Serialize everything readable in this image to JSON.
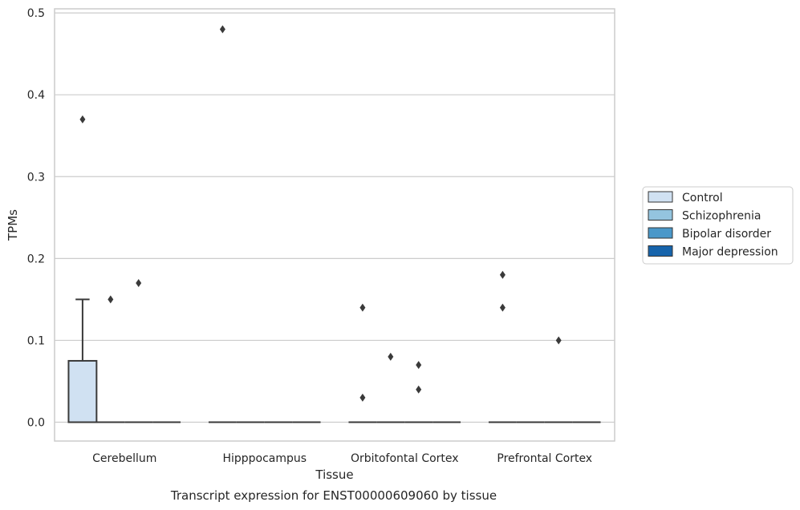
{
  "chart_data": {
    "type": "box",
    "caption": "Transcript expression for ENST00000609060 by tissue",
    "xlabel": "Tissue",
    "ylabel": "TPMs",
    "ylim": [
      -0.023,
      0.505
    ],
    "yticks": [
      0.0,
      0.1,
      0.2,
      0.3,
      0.4,
      0.5
    ],
    "ytick_labels": [
      "0.0",
      "0.1",
      "0.2",
      "0.3",
      "0.4",
      "0.5"
    ],
    "grid": "horizontal",
    "legend_position": "right",
    "categories": [
      "Cerebellum",
      "Hipppocampus",
      "Orbitofontal Cortex",
      "Prefrontal Cortex"
    ],
    "series": [
      {
        "name": "Control",
        "color": "#d0e1f2",
        "boxes": [
          {
            "q1": 0.0,
            "median": 0.0,
            "q3": 0.075,
            "whisker_low": 0.0,
            "whisker_high": 0.15,
            "outliers": [
              0.37
            ]
          },
          {
            "q1": 0.0,
            "median": 0.0,
            "q3": 0.0,
            "whisker_low": 0.0,
            "whisker_high": 0.0,
            "outliers": [
              0.48
            ]
          },
          {
            "q1": 0.0,
            "median": 0.0,
            "q3": 0.0,
            "whisker_low": 0.0,
            "whisker_high": 0.0,
            "outliers": [
              0.14,
              0.03
            ]
          },
          {
            "q1": 0.0,
            "median": 0.0,
            "q3": 0.0,
            "whisker_low": 0.0,
            "whisker_high": 0.0,
            "outliers": [
              0.18,
              0.14
            ]
          }
        ]
      },
      {
        "name": "Schizophrenia",
        "color": "#94c4df",
        "boxes": [
          {
            "q1": 0.0,
            "median": 0.0,
            "q3": 0.0,
            "whisker_low": 0.0,
            "whisker_high": 0.0,
            "outliers": [
              0.15
            ]
          },
          {
            "q1": 0.0,
            "median": 0.0,
            "q3": 0.0,
            "whisker_low": 0.0,
            "whisker_high": 0.0,
            "outliers": []
          },
          {
            "q1": 0.0,
            "median": 0.0,
            "q3": 0.0,
            "whisker_low": 0.0,
            "whisker_high": 0.0,
            "outliers": [
              0.08
            ]
          },
          {
            "q1": 0.0,
            "median": 0.0,
            "q3": 0.0,
            "whisker_low": 0.0,
            "whisker_high": 0.0,
            "outliers": []
          }
        ]
      },
      {
        "name": "Bipolar disorder",
        "color": "#4a98c9",
        "boxes": [
          {
            "q1": 0.0,
            "median": 0.0,
            "q3": 0.0,
            "whisker_low": 0.0,
            "whisker_high": 0.0,
            "outliers": [
              0.17
            ]
          },
          {
            "q1": 0.0,
            "median": 0.0,
            "q3": 0.0,
            "whisker_low": 0.0,
            "whisker_high": 0.0,
            "outliers": []
          },
          {
            "q1": 0.0,
            "median": 0.0,
            "q3": 0.0,
            "whisker_low": 0.0,
            "whisker_high": 0.0,
            "outliers": [
              0.07,
              0.04
            ]
          },
          {
            "q1": 0.0,
            "median": 0.0,
            "q3": 0.0,
            "whisker_low": 0.0,
            "whisker_high": 0.0,
            "outliers": [
              0.1
            ]
          }
        ]
      },
      {
        "name": "Major depression",
        "color": "#1764ab",
        "boxes": [
          {
            "q1": 0.0,
            "median": 0.0,
            "q3": 0.0,
            "whisker_low": 0.0,
            "whisker_high": 0.0,
            "outliers": []
          },
          {
            "q1": 0.0,
            "median": 0.0,
            "q3": 0.0,
            "whisker_low": 0.0,
            "whisker_high": 0.0,
            "outliers": []
          },
          {
            "q1": 0.0,
            "median": 0.0,
            "q3": 0.0,
            "whisker_low": 0.0,
            "whisker_high": 0.0,
            "outliers": []
          },
          {
            "q1": 0.0,
            "median": 0.0,
            "q3": 0.0,
            "whisker_low": 0.0,
            "whisker_high": 0.0,
            "outliers": []
          }
        ]
      }
    ]
  }
}
